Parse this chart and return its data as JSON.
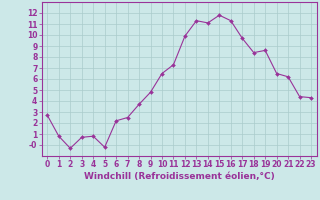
{
  "x": [
    0,
    1,
    2,
    3,
    4,
    5,
    6,
    7,
    8,
    9,
    10,
    11,
    12,
    13,
    14,
    15,
    16,
    17,
    18,
    19,
    20,
    21,
    22,
    23
  ],
  "y": [
    2.7,
    0.8,
    -0.3,
    0.7,
    0.8,
    -0.2,
    2.2,
    2.5,
    3.7,
    4.8,
    6.5,
    7.3,
    9.9,
    11.3,
    11.1,
    11.8,
    11.3,
    9.7,
    8.4,
    8.6,
    6.5,
    6.2,
    4.4,
    4.3
  ],
  "line_color": "#993399",
  "marker": "D",
  "marker_size": 2.0,
  "bg_color": "#cce8e8",
  "grid_color": "#aacccc",
  "xlim": [
    -0.5,
    23.5
  ],
  "ylim": [
    -1,
    13
  ],
  "xticks": [
    0,
    1,
    2,
    3,
    4,
    5,
    6,
    7,
    8,
    9,
    10,
    11,
    12,
    13,
    14,
    15,
    16,
    17,
    18,
    19,
    20,
    21,
    22,
    23
  ],
  "yticks": [
    0,
    1,
    2,
    3,
    4,
    5,
    6,
    7,
    8,
    9,
    10,
    11,
    12
  ],
  "ytick_labels": [
    "-0",
    "1",
    "2",
    "3",
    "4",
    "5",
    "6",
    "7",
    "8",
    "9",
    "10",
    "11",
    "12"
  ],
  "font_color": "#993399",
  "axis_color": "#993399",
  "tick_fontsize": 5.5,
  "xlabel": "Windchill (Refroidissement éolien,°C)",
  "xlabel_fontsize": 6.5
}
